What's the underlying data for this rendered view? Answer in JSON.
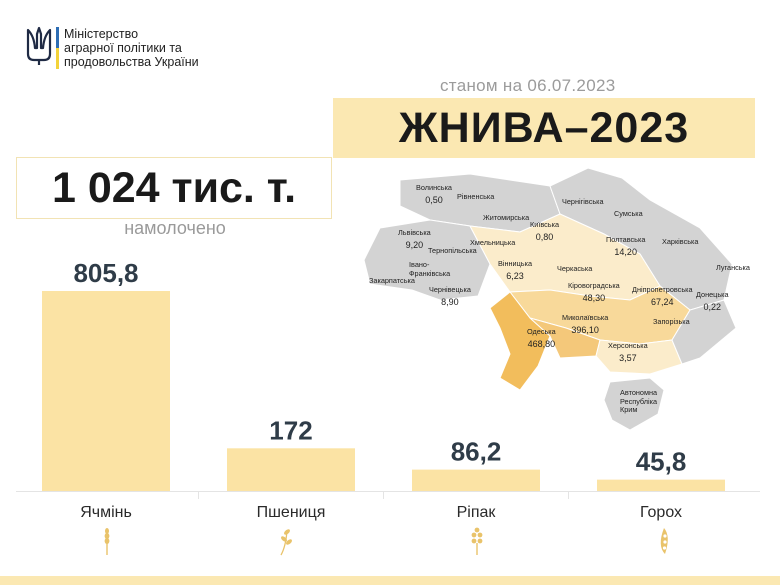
{
  "header": {
    "ministry_lines": [
      "Міністерство",
      "аграрної політики та",
      "продовольства України"
    ],
    "date_text": "станом на 06.07.2023",
    "title": "ЖНИВА–2023"
  },
  "summary": {
    "total": "1 024 тис. т.",
    "total_caption": "намолочено"
  },
  "chart_data": {
    "type": "bar",
    "categories": [
      "Ячмінь",
      "Пшениця",
      "Ріпак",
      "Горох"
    ],
    "values": [
      805.8,
      172,
      86.2,
      45.8
    ],
    "value_labels": [
      "805,8",
      "172",
      "86,2",
      "45,8"
    ],
    "title": "",
    "xlabel": "",
    "ylabel": "",
    "ylim": [
      0,
      805.8
    ],
    "grid": false,
    "legend": "none",
    "bar_color": "#fbe3a4",
    "value_color": "#2f3c48"
  },
  "map": {
    "regions": [
      {
        "name": "Волинська",
        "value": "0,50"
      },
      {
        "name": "Рівненська",
        "value": ""
      },
      {
        "name": "Житомирська",
        "value": ""
      },
      {
        "name": "Київська",
        "value": "0,80"
      },
      {
        "name": "Чернігівська",
        "value": ""
      },
      {
        "name": "Сумська",
        "value": ""
      },
      {
        "name": "Львівська",
        "value": "9,20"
      },
      {
        "name": "Тернопільська",
        "value": ""
      },
      {
        "name": "Хмельницька",
        "value": ""
      },
      {
        "name": "Полтавська",
        "value": "14,20"
      },
      {
        "name": "Харківська",
        "value": ""
      },
      {
        "name": "Івано-Франківська",
        "value": ""
      },
      {
        "name": "Вінницька",
        "value": "6,23"
      },
      {
        "name": "Черкаська",
        "value": ""
      },
      {
        "name": "Луганська",
        "value": ""
      },
      {
        "name": "Закарпатська",
        "value": ""
      },
      {
        "name": "Чернівецька",
        "value": "8,90"
      },
      {
        "name": "Кіровоградська",
        "value": "48,30"
      },
      {
        "name": "Дніпропетровська",
        "value": "67,24"
      },
      {
        "name": "Донецька",
        "value": "0,22"
      },
      {
        "name": "Миколаївська",
        "value": "396,10"
      },
      {
        "name": "Одеська",
        "value": "468,80"
      },
      {
        "name": "Запорізька",
        "value": ""
      },
      {
        "name": "Херсонська",
        "value": "3,57"
      },
      {
        "name": "Автономна Республіка Крим",
        "value": ""
      }
    ]
  },
  "icons": [
    "barley-icon",
    "wheat-icon",
    "rapeseed-icon",
    "pea-pod-icon"
  ],
  "colors": {
    "accent": "#fbe8b2",
    "bar": "#fbe3a4",
    "map_gray": "#d3d3d3",
    "map_light": "#fbeccb",
    "map_mid": "#f8d99a",
    "map_dark": "#f2bd5c"
  }
}
